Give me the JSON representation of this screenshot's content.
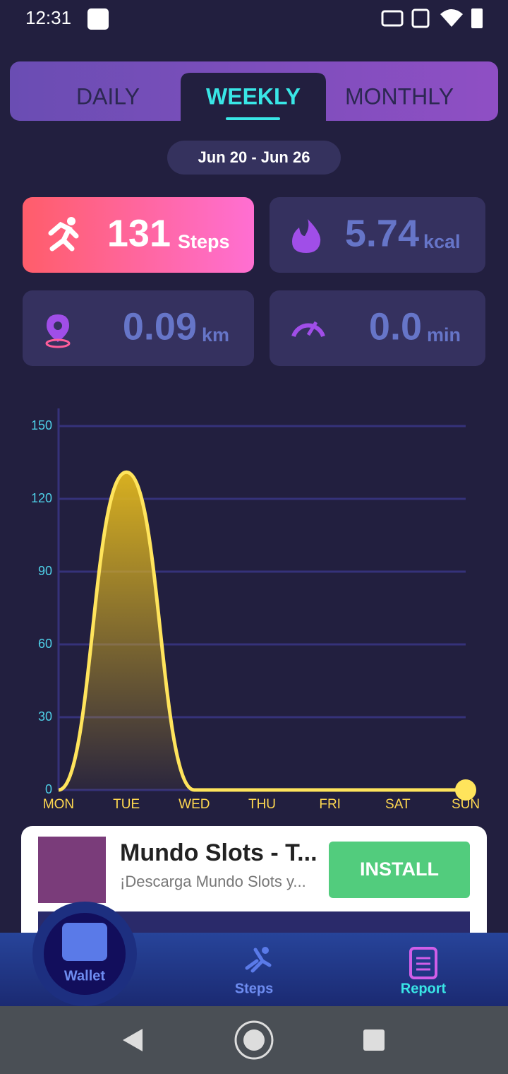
{
  "status_bar": {
    "time": "12:31"
  },
  "tabs": [
    "DAILY",
    "WEEKLY",
    "MONTHLY"
  ],
  "date_range": "Jun 20 - Jun 26",
  "stats": [
    {
      "value": "131",
      "unit": "Steps"
    },
    {
      "value": "5.74",
      "unit": "kcal"
    },
    {
      "value": "0.09",
      "unit": "km"
    },
    {
      "value": "0.0",
      "unit": "min"
    }
  ],
  "chart": {
    "type": "line",
    "categories": [
      "MON",
      "TUE",
      "WED",
      "THU",
      "FRI",
      "SAT",
      "SUN"
    ],
    "values": [
      0,
      131,
      0,
      0,
      0,
      0,
      0
    ],
    "color": "#ffe45c",
    "ylim": [
      0,
      150
    ],
    "yticks": [
      0,
      30,
      60,
      90,
      120,
      150
    ],
    "grid": true
  },
  "ad": {
    "title": "Mundo Slots - T...",
    "subtitle": "¡Descarga Mundo Slots y...",
    "button": "INSTALL"
  },
  "nav": [
    "Wallet",
    "Steps",
    "Report"
  ]
}
